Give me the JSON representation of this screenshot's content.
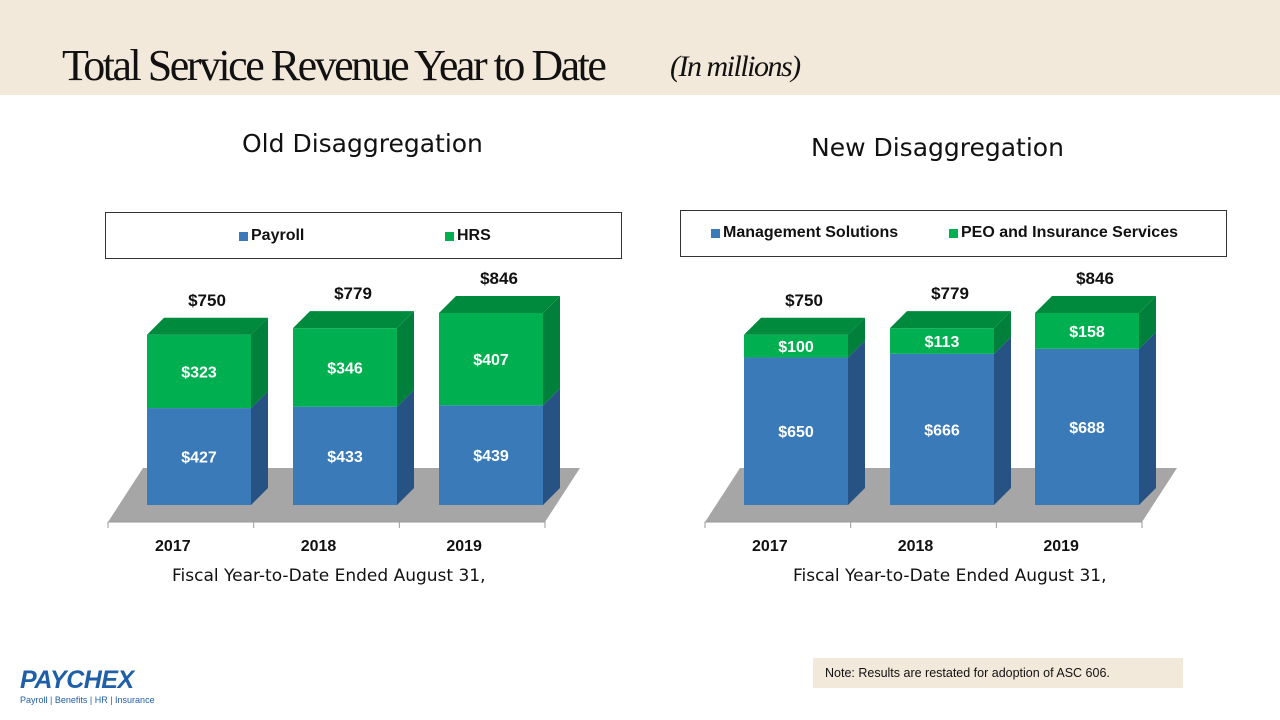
{
  "header": {
    "title": "Total Service Revenue Year to Date",
    "subtitle": "(In millions)"
  },
  "chart_data": [
    {
      "type": "bar",
      "stacked": true,
      "style": "3d",
      "title": "Old Disaggregation",
      "xlabel": "Fiscal Year-to-Date Ended August 31,",
      "categories": [
        "2017",
        "2018",
        "2019"
      ],
      "series": [
        {
          "name": "Payroll",
          "color": "#3a7ab8",
          "values": [
            427,
            433,
            439
          ],
          "labels": [
            "$427",
            "$433",
            "$439"
          ]
        },
        {
          "name": "HRS",
          "color": "#00b050",
          "values": [
            323,
            346,
            407
          ],
          "labels": [
            "$323",
            "$346",
            "$407"
          ]
        }
      ],
      "totals": [
        750,
        779,
        846
      ],
      "total_labels": [
        "$750",
        "$779",
        "$846"
      ],
      "legend": "top",
      "grid": false
    },
    {
      "type": "bar",
      "stacked": true,
      "style": "3d",
      "title": "New Disaggregation",
      "xlabel": "Fiscal Year-to-Date Ended August 31,",
      "categories": [
        "2017",
        "2018",
        "2019"
      ],
      "series": [
        {
          "name": "Management Solutions",
          "color": "#3a7ab8",
          "values": [
            650,
            666,
            688
          ],
          "labels": [
            "$650",
            "$666",
            "$688"
          ]
        },
        {
          "name": "PEO and Insurance Services",
          "color": "#00b050",
          "values": [
            100,
            113,
            158
          ],
          "labels": [
            "$100",
            "$113",
            "$158"
          ]
        }
      ],
      "totals": [
        750,
        779,
        846
      ],
      "total_labels": [
        "$750",
        "$779",
        "$846"
      ],
      "legend": "top",
      "grid": false
    }
  ],
  "logo": {
    "name": "PAYCHEX",
    "tagline": "Payroll | Benefits | HR | Insurance"
  },
  "note": "Note: Results are restated for adoption of ASC 606."
}
